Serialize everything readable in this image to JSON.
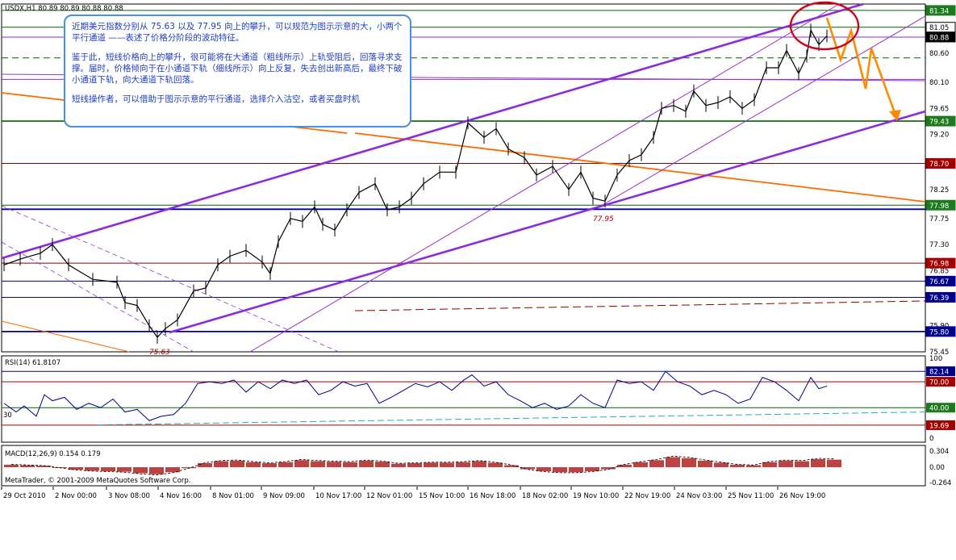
{
  "header": {
    "symbol": "USDX,H1",
    "ohlc": "80.89 80.89 80.88 80.88"
  },
  "annotation": {
    "para1": "近期美元指数分别从 75.63 以及 77.95 向上的攀升，可以规范为图示示意的大，小两个平行通道 ——表述了价格分阶段的波动特征。",
    "para2": "鉴于此，短线价格向上的攀升，很可能将在大通道（粗线所示）上轨受阻后，回落寻求支撑。届时，价格倾向于在小通道下轨（细线所示）向上反复，失去创出新高后，最终下破小通道下轨，向大通道下轨回落。",
    "para3": "短线操作者，可以借助于图示示意的平行通道，选择介入沽空，或者买盘时机"
  },
  "chart_labels": {
    "low_label_1": "75.63",
    "low_label_2": "77.95"
  },
  "rsi": {
    "label": "RSI(14) 61.8107",
    "left_30": "30",
    "levels": {
      "high": 70,
      "low": 30
    }
  },
  "macd": {
    "label": "MACD(12,26,9) 0.154 0.179",
    "copyright": "MetaTrader, © 2001-2009 MetaQuotes Software Corp."
  },
  "colors": {
    "bull_line": "#8a2be2",
    "channel_thin": "#9932cc",
    "trend_orange": "#ff6a00",
    "hline_red": "#8b0000",
    "hline_blue": "#000080",
    "hline_green": "#006400",
    "rsi_line": "#00008b",
    "macd_hist": "#b22222",
    "circle": "#d0021b",
    "note_border": "#4a90d9",
    "note_text": "#1f3fbf"
  },
  "chart_data": {
    "type": "line",
    "title": "USDX,H1",
    "price_range": [
      75.45,
      81.45
    ],
    "x_ticks": [
      "29 Oct 2010",
      "2 Nov 00:00",
      "3 Nov 08:00",
      "4 Nov 16:00",
      "8 Nov 01:00",
      "9 Nov 09:00",
      "10 Nov 17:00",
      "12 Nov 01:00",
      "15 Nov 10:00",
      "16 Nov 18:00",
      "18 Nov 02:00",
      "19 Nov 10:00",
      "22 Nov 19:00",
      "24 Nov 03:00",
      "25 Nov 11:00",
      "26 Nov 19:00"
    ],
    "y_ticks": [
      "81.05",
      "80.60",
      "80.10",
      "79.65",
      "79.20",
      "78.25",
      "77.75",
      "77.30",
      "76.85",
      "75.90",
      "75.45"
    ],
    "price_tags": [
      {
        "value": "81.34",
        "bg": "#1f7a1f"
      },
      {
        "value": "81.05",
        "bg": "#ffffff"
      },
      {
        "value": "80.88",
        "bg": "#000000"
      },
      {
        "value": "79.43",
        "bg": "#1f7a1f"
      },
      {
        "value": "78.70",
        "bg": "#a40000"
      },
      {
        "value": "77.98",
        "bg": "#1f7a1f"
      },
      {
        "value": "76.98",
        "bg": "#a40000"
      },
      {
        "value": "76.67",
        "bg": "#00008b"
      },
      {
        "value": "76.39",
        "bg": "#00008b"
      },
      {
        "value": "75.80",
        "bg": "#00008b"
      }
    ],
    "hlines": [
      {
        "value": 81.34,
        "color": "#006400",
        "dash": false
      },
      {
        "value": 81.05,
        "color": "#006400",
        "dash": false
      },
      {
        "value": 80.88,
        "color": "#8a2be2",
        "dash": false
      },
      {
        "value": 80.52,
        "color": "#006400",
        "dash": true
      },
      {
        "value": 80.15,
        "color": "#8a2be2",
        "dash": false
      },
      {
        "value": 79.43,
        "color": "#006400",
        "dash": false,
        "w": 1.6
      },
      {
        "value": 78.7,
        "color": "#8b0000",
        "dash": false
      },
      {
        "value": 77.98,
        "color": "#006400",
        "dash": false
      },
      {
        "value": 77.91,
        "color": "#00008b",
        "dash": false,
        "w": 1.8
      },
      {
        "value": 76.98,
        "color": "#8b0000",
        "dash": false
      },
      {
        "value": 76.67,
        "color": "#00008b",
        "dash": false
      },
      {
        "value": 76.39,
        "color": "#00008b",
        "dash": false
      },
      {
        "value": 75.8,
        "color": "#00008b",
        "dash": false,
        "w": 1.8
      }
    ],
    "price_series": [
      [
        0,
        76.95
      ],
      [
        20,
        77.05
      ],
      [
        45,
        77.15
      ],
      [
        60,
        77.3
      ],
      [
        80,
        76.95
      ],
      [
        110,
        76.7
      ],
      [
        140,
        76.65
      ],
      [
        150,
        76.3
      ],
      [
        165,
        76.25
      ],
      [
        180,
        75.9
      ],
      [
        190,
        75.7
      ],
      [
        200,
        75.85
      ],
      [
        215,
        76.0
      ],
      [
        235,
        76.5
      ],
      [
        250,
        76.55
      ],
      [
        265,
        76.95
      ],
      [
        280,
        77.1
      ],
      [
        300,
        77.2
      ],
      [
        320,
        77.0
      ],
      [
        330,
        76.8
      ],
      [
        340,
        77.35
      ],
      [
        355,
        77.75
      ],
      [
        370,
        77.7
      ],
      [
        385,
        77.95
      ],
      [
        395,
        77.65
      ],
      [
        410,
        77.55
      ],
      [
        425,
        77.9
      ],
      [
        440,
        78.2
      ],
      [
        460,
        78.35
      ],
      [
        475,
        77.9
      ],
      [
        490,
        77.95
      ],
      [
        505,
        78.1
      ],
      [
        520,
        78.35
      ],
      [
        540,
        78.55
      ],
      [
        560,
        78.55
      ],
      [
        575,
        79.4
      ],
      [
        595,
        79.15
      ],
      [
        610,
        79.3
      ],
      [
        625,
        78.95
      ],
      [
        645,
        78.8
      ],
      [
        660,
        78.5
      ],
      [
        680,
        78.65
      ],
      [
        700,
        78.25
      ],
      [
        715,
        78.55
      ],
      [
        730,
        78.1
      ],
      [
        745,
        78.05
      ],
      [
        760,
        78.5
      ],
      [
        775,
        78.75
      ],
      [
        790,
        78.85
      ],
      [
        805,
        79.15
      ],
      [
        815,
        79.65
      ],
      [
        830,
        79.7
      ],
      [
        845,
        79.6
      ],
      [
        855,
        79.95
      ],
      [
        870,
        79.7
      ],
      [
        885,
        79.75
      ],
      [
        900,
        79.85
      ],
      [
        915,
        79.65
      ],
      [
        930,
        79.8
      ],
      [
        945,
        80.35
      ],
      [
        960,
        80.35
      ],
      [
        970,
        80.65
      ],
      [
        985,
        80.25
      ],
      [
        995,
        80.55
      ],
      [
        1000,
        81.0
      ],
      [
        1010,
        80.75
      ],
      [
        1020,
        80.9
      ]
    ],
    "rsi_series": [
      [
        0,
        45
      ],
      [
        15,
        35
      ],
      [
        25,
        42
      ],
      [
        40,
        30
      ],
      [
        50,
        55
      ],
      [
        60,
        48
      ],
      [
        75,
        52
      ],
      [
        90,
        38
      ],
      [
        105,
        45
      ],
      [
        120,
        40
      ],
      [
        135,
        50
      ],
      [
        150,
        35
      ],
      [
        165,
        38
      ],
      [
        180,
        25
      ],
      [
        195,
        30
      ],
      [
        210,
        32
      ],
      [
        225,
        45
      ],
      [
        240,
        68
      ],
      [
        255,
        70
      ],
      [
        270,
        68
      ],
      [
        285,
        72
      ],
      [
        300,
        58
      ],
      [
        315,
        70
      ],
      [
        330,
        62
      ],
      [
        345,
        72
      ],
      [
        360,
        68
      ],
      [
        375,
        72
      ],
      [
        390,
        55
      ],
      [
        405,
        60
      ],
      [
        420,
        70
      ],
      [
        435,
        65
      ],
      [
        450,
        68
      ],
      [
        465,
        45
      ],
      [
        480,
        52
      ],
      [
        495,
        60
      ],
      [
        510,
        68
      ],
      [
        525,
        64
      ],
      [
        540,
        70
      ],
      [
        555,
        60
      ],
      [
        570,
        72
      ],
      [
        580,
        78
      ],
      [
        595,
        65
      ],
      [
        610,
        70
      ],
      [
        625,
        55
      ],
      [
        640,
        48
      ],
      [
        655,
        40
      ],
      [
        670,
        45
      ],
      [
        685,
        38
      ],
      [
        700,
        42
      ],
      [
        715,
        55
      ],
      [
        730,
        45
      ],
      [
        745,
        40
      ],
      [
        760,
        72
      ],
      [
        775,
        68
      ],
      [
        790,
        70
      ],
      [
        805,
        60
      ],
      [
        820,
        82
      ],
      [
        835,
        70
      ],
      [
        850,
        65
      ],
      [
        865,
        55
      ],
      [
        880,
        60
      ],
      [
        895,
        55
      ],
      [
        910,
        45
      ],
      [
        925,
        50
      ],
      [
        940,
        75
      ],
      [
        955,
        70
      ],
      [
        970,
        60
      ],
      [
        985,
        48
      ],
      [
        1000,
        75
      ],
      [
        1010,
        62
      ],
      [
        1020,
        65
      ]
    ],
    "macd_hist": [
      [
        0,
        0.05
      ],
      [
        20,
        0.04
      ],
      [
        40,
        0.03
      ],
      [
        60,
        -0.01
      ],
      [
        80,
        -0.05
      ],
      [
        100,
        -0.07
      ],
      [
        120,
        -0.08
      ],
      [
        140,
        -0.09
      ],
      [
        160,
        -0.12
      ],
      [
        180,
        -0.14
      ],
      [
        200,
        -0.1
      ],
      [
        220,
        -0.02
      ],
      [
        240,
        0.08
      ],
      [
        260,
        0.12
      ],
      [
        280,
        0.13
      ],
      [
        300,
        0.1
      ],
      [
        320,
        0.08
      ],
      [
        340,
        0.1
      ],
      [
        360,
        0.14
      ],
      [
        380,
        0.12
      ],
      [
        400,
        0.11
      ],
      [
        420,
        0.1
      ],
      [
        440,
        0.13
      ],
      [
        460,
        0.11
      ],
      [
        480,
        0.07
      ],
      [
        500,
        0.08
      ],
      [
        520,
        0.09
      ],
      [
        540,
        0.09
      ],
      [
        560,
        0.1
      ],
      [
        580,
        0.12
      ],
      [
        600,
        0.09
      ],
      [
        620,
        0.04
      ],
      [
        640,
        -0.04
      ],
      [
        660,
        -0.08
      ],
      [
        680,
        -0.1
      ],
      [
        700,
        -0.1
      ],
      [
        720,
        -0.08
      ],
      [
        740,
        -0.04
      ],
      [
        760,
        0.05
      ],
      [
        780,
        0.1
      ],
      [
        800,
        0.14
      ],
      [
        820,
        0.2
      ],
      [
        840,
        0.18
      ],
      [
        860,
        0.13
      ],
      [
        880,
        0.09
      ],
      [
        900,
        0.05
      ],
      [
        920,
        0.04
      ],
      [
        940,
        0.1
      ],
      [
        960,
        0.13
      ],
      [
        980,
        0.12
      ],
      [
        1000,
        0.16
      ],
      [
        1020,
        0.15
      ]
    ],
    "rsi_tags": [
      {
        "value": "82.14",
        "bg": "#00008b"
      },
      {
        "value": "70.00",
        "bg": "#a40000"
      },
      {
        "value": "40.00",
        "bg": "#1f7a1f"
      },
      {
        "value": "19.69",
        "bg": "#a40000"
      }
    ],
    "rsi_ticks": [
      "100",
      "0"
    ],
    "macd_ticks": [
      "0.304",
      "0.00",
      "-0.264"
    ]
  }
}
